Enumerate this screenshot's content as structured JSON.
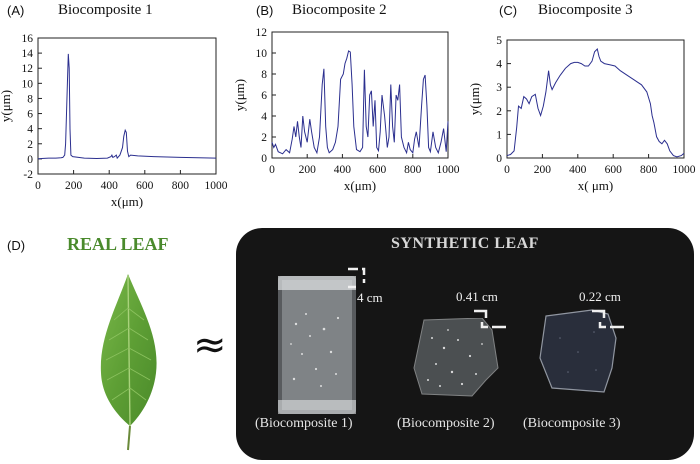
{
  "panels": {
    "a": {
      "label": "(A)",
      "title": "Biocomposite 1"
    },
    "b": {
      "label": "(B)",
      "title": "Biocomposite 2"
    },
    "c": {
      "label": "(C)",
      "title": "Biocomposite 3"
    },
    "d": {
      "label": "(D)"
    }
  },
  "chart_data": [
    {
      "type": "line",
      "title": "Biocomposite 1",
      "xlabel": "x(μm)",
      "ylabel": "y(μm)",
      "xlim": [
        0,
        1000
      ],
      "ylim": [
        -2,
        16
      ],
      "xticks": [
        0,
        200,
        400,
        600,
        800,
        1000
      ],
      "yticks": [
        -2,
        0,
        2,
        4,
        6,
        8,
        10,
        12,
        14,
        16
      ],
      "color": "#2b2f8f",
      "x": [
        0,
        20,
        60,
        100,
        130,
        140,
        150,
        155,
        160,
        165,
        170,
        175,
        180,
        185,
        195,
        260,
        330,
        390,
        410,
        415,
        420,
        430,
        440,
        445,
        460,
        475,
        482,
        490,
        496,
        503,
        510,
        520,
        560,
        650,
        800,
        1000
      ],
      "y": [
        0,
        0.05,
        0.1,
        0.1,
        0.15,
        0.2,
        0.5,
        2,
        6,
        10,
        13.9,
        12,
        4,
        0.5,
        0.3,
        0.1,
        0.05,
        0.1,
        0.3,
        0.5,
        0.2,
        0.3,
        0.5,
        0.1,
        0.5,
        1.5,
        3,
        3.8,
        3.5,
        1,
        0.3,
        0.5,
        0.4,
        0.3,
        0.2,
        0.1
      ]
    },
    {
      "type": "line",
      "title": "Biocomposite 2",
      "xlabel": "x(μm)",
      "ylabel": "y(μm)",
      "xlim": [
        0,
        1000
      ],
      "ylim": [
        0,
        12
      ],
      "xticks": [
        0,
        200,
        400,
        600,
        800,
        1000
      ],
      "yticks": [
        0,
        2,
        4,
        6,
        8,
        10,
        12
      ],
      "color": "#2b2f8f",
      "x": [
        0,
        10,
        20,
        35,
        60,
        80,
        100,
        115,
        125,
        135,
        145,
        155,
        165,
        175,
        185,
        200,
        215,
        225,
        240,
        255,
        270,
        285,
        295,
        305,
        315,
        325,
        345,
        360,
        375,
        390,
        405,
        415,
        425,
        435,
        445,
        455,
        465,
        480,
        500,
        515,
        525,
        535,
        545,
        555,
        565,
        575,
        585,
        595,
        605,
        615,
        625,
        640,
        655,
        665,
        675,
        685,
        695,
        705,
        715,
        725,
        735,
        750,
        765,
        775,
        785,
        800,
        810,
        820,
        835,
        850,
        860,
        870,
        880,
        890,
        900,
        915,
        930,
        945,
        960,
        975,
        990,
        1000
      ],
      "y": [
        1.5,
        1,
        1.3,
        0.6,
        0.4,
        0.8,
        0.5,
        1.8,
        3,
        2,
        3.5,
        2,
        1,
        4,
        2.5,
        1.5,
        3.7,
        2.5,
        1,
        0.5,
        2,
        7,
        8.5,
        3,
        1,
        0.5,
        0.8,
        1.5,
        3,
        7.5,
        8,
        9,
        9.5,
        10.2,
        10.1,
        7,
        3,
        0.8,
        0.6,
        1,
        8.4,
        3,
        2,
        6,
        6.4,
        3,
        5.5,
        1,
        0.7,
        2.5,
        6,
        4,
        1,
        2,
        7,
        3,
        1.5,
        6,
        5.5,
        7,
        2,
        1,
        0.5,
        1.5,
        0.8,
        0.5,
        1.8,
        2.5,
        1,
        5,
        7.5,
        7.9,
        5,
        1,
        0.6,
        2.5,
        1,
        0.5,
        1.5,
        2.8,
        0.6,
        3.5
      ]
    },
    {
      "type": "line",
      "title": "Biocomposite 3",
      "xlabel": "x( μm)",
      "ylabel": "y(μm)",
      "xlim": [
        0,
        1000
      ],
      "ylim": [
        0,
        5
      ],
      "xticks": [
        0,
        200,
        400,
        600,
        800,
        1000
      ],
      "yticks": [
        0,
        1,
        2,
        3,
        4,
        5
      ],
      "color": "#2b2f8f",
      "x": [
        0,
        20,
        40,
        55,
        65,
        80,
        95,
        110,
        125,
        140,
        160,
        175,
        190,
        205,
        220,
        235,
        245,
        255,
        275,
        300,
        330,
        360,
        380,
        400,
        420,
        440,
        460,
        480,
        495,
        510,
        520,
        530,
        550,
        580,
        610,
        640,
        680,
        720,
        760,
        790,
        810,
        820,
        830,
        845,
        860,
        875,
        890,
        905,
        920,
        940,
        960,
        985,
        1000
      ],
      "y": [
        0.1,
        0.15,
        0.3,
        1.3,
        2.2,
        2.1,
        2.6,
        2.5,
        2.3,
        2.6,
        2.7,
        2.1,
        1.8,
        2.2,
        2.8,
        3.7,
        3.1,
        2.9,
        3.2,
        3.5,
        3.8,
        4,
        4.05,
        4.05,
        4,
        3.9,
        3.9,
        4.1,
        4.5,
        4.62,
        4.3,
        4.1,
        4,
        3.95,
        3.9,
        3.7,
        3.5,
        3.3,
        3.1,
        2.8,
        2.3,
        1.8,
        1.5,
        0.9,
        0.7,
        0.6,
        0.75,
        0.6,
        0.3,
        0.1,
        0.05,
        0.1,
        0.2
      ]
    }
  ],
  "real_leaf": {
    "label": "REAL LEAF",
    "approx_symbol": "≈"
  },
  "synthetic": {
    "title": "SYNTHETIC LEAF",
    "samples": [
      {
        "caption": "(Biocomposite 1)",
        "dimension": "4 cm"
      },
      {
        "caption": "(Biocomposite 2)",
        "dimension": "0.41 cm"
      },
      {
        "caption": "(Biocomposite 3)",
        "dimension": "0.22 cm"
      }
    ]
  }
}
